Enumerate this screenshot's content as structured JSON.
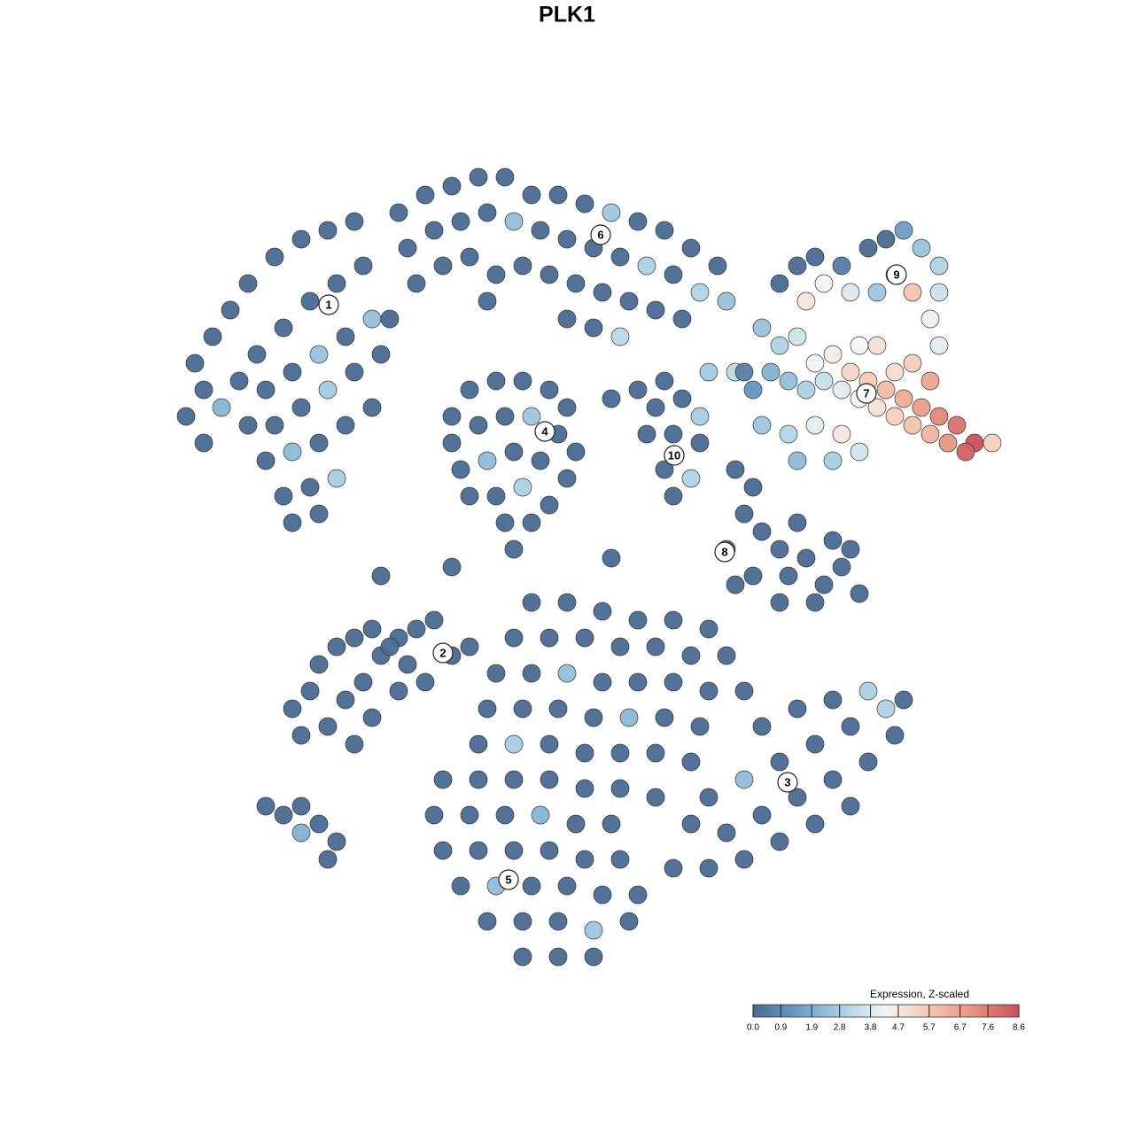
{
  "chart_data": {
    "type": "scatter",
    "title": "PLK1",
    "xlim": [
      0,
      128
    ],
    "ylim": [
      0,
      128
    ],
    "x": [
      22,
      24,
      26,
      28,
      31,
      34,
      37,
      40,
      23,
      25,
      27,
      29,
      32,
      35,
      38,
      41,
      30,
      33,
      36,
      39,
      42,
      28,
      31,
      34,
      37,
      40,
      43,
      30,
      33,
      36,
      39,
      42,
      32,
      35,
      38,
      33,
      36,
      23,
      21,
      45,
      48,
      51,
      54,
      57,
      60,
      63,
      66,
      69,
      72,
      75,
      78,
      81,
      46,
      49,
      52,
      55,
      58,
      61,
      64,
      67,
      70,
      73,
      76,
      79,
      47,
      50,
      53,
      56,
      59,
      62,
      65,
      68,
      71,
      74,
      77,
      82,
      64,
      67,
      70,
      55,
      44,
      51,
      53,
      56,
      59,
      62,
      64,
      51,
      54,
      57,
      60,
      63,
      65,
      52,
      55,
      58,
      61,
      64,
      53,
      56,
      59,
      62,
      57,
      60,
      74,
      77,
      79,
      73,
      76,
      79,
      75,
      78,
      76,
      69,
      72,
      75,
      80,
      83,
      83,
      85,
      84,
      86,
      88,
      89,
      91,
      93,
      95,
      97,
      92,
      88,
      94,
      90,
      82,
      85,
      96,
      83,
      88,
      90,
      92,
      95,
      98,
      100,
      102,
      104,
      106,
      106,
      105,
      101,
      99,
      96,
      93,
      91,
      103,
      106,
      86,
      88,
      90,
      92,
      94,
      96,
      98,
      100,
      102,
      104,
      106,
      108,
      110,
      112,
      109,
      107,
      105,
      103,
      101,
      99,
      97,
      95,
      93,
      91,
      89,
      87,
      85,
      86,
      89,
      92,
      95,
      97,
      94,
      90,
      101,
      103,
      105,
      97,
      99,
      84,
      33,
      35,
      37,
      39,
      41,
      43,
      45,
      47,
      49,
      36,
      38,
      40,
      42,
      44,
      46,
      48,
      51,
      53,
      40,
      42,
      34,
      45,
      30,
      32,
      34,
      36,
      38,
      37,
      34,
      60,
      64,
      68,
      72,
      76,
      80,
      58,
      62,
      66,
      70,
      74,
      78,
      82,
      56,
      60,
      64,
      68,
      72,
      76,
      80,
      84,
      55,
      59,
      63,
      67,
      71,
      75,
      79,
      54,
      58,
      62,
      66,
      70,
      74,
      78,
      50,
      54,
      58,
      62,
      66,
      70,
      74,
      49,
      53,
      57,
      61,
      65,
      69,
      50,
      54,
      58,
      62,
      66,
      70,
      52,
      56,
      60,
      64,
      68,
      72,
      55,
      59,
      63,
      67,
      71,
      59,
      63,
      67,
      80,
      84,
      88,
      92,
      96,
      100,
      102,
      82,
      86,
      90,
      94,
      98,
      101,
      84,
      88,
      92,
      96,
      86,
      90,
      94,
      98,
      78,
      76,
      80,
      43,
      51,
      58,
      69
    ],
    "y": [
      87,
      90,
      93,
      96,
      99,
      101,
      102,
      103,
      84,
      82,
      85,
      88,
      91,
      94,
      96,
      98,
      84,
      86,
      88,
      90,
      92,
      80,
      80,
      82,
      84,
      86,
      88,
      76,
      77,
      78,
      80,
      82,
      72,
      73,
      74,
      69,
      70,
      78,
      81,
      104,
      106,
      107,
      108,
      108,
      106,
      106,
      105,
      104,
      103,
      102,
      100,
      98,
      100,
      102,
      103,
      104,
      103,
      102,
      101,
      100,
      99,
      98,
      97,
      95,
      96,
      98,
      99,
      97,
      98,
      97,
      96,
      95,
      94,
      93,
      92,
      94,
      92,
      91,
      90,
      94,
      92,
      81,
      84,
      85,
      85,
      84,
      82,
      78,
      80,
      81,
      81,
      79,
      77,
      75,
      76,
      77,
      76,
      74,
      72,
      72,
      73,
      71,
      69,
      69,
      82,
      83,
      81,
      79,
      79,
      78,
      75,
      74,
      72,
      83,
      84,
      85,
      86,
      86,
      75,
      73,
      70,
      68,
      66,
      63,
      65,
      62,
      64,
      61,
      60,
      60,
      67,
      69,
      66,
      63,
      66,
      62,
      96,
      98,
      99,
      98,
      100,
      101,
      102,
      100,
      98,
      95,
      92,
      97,
      95,
      95,
      96,
      94,
      95,
      89,
      91,
      89,
      90,
      87,
      88,
      86,
      85,
      84,
      83,
      82,
      81,
      80,
      78,
      78,
      77,
      78,
      79,
      80,
      81,
      82,
      83,
      84,
      85,
      84,
      85,
      86,
      84,
      80,
      79,
      80,
      79,
      77,
      76,
      76,
      86,
      87,
      85,
      89,
      89,
      86,
      48,
      50,
      46,
      49,
      51,
      54,
      56,
      57,
      58,
      53,
      55,
      56,
      57,
      55,
      53,
      51,
      54,
      55,
      44,
      47,
      45,
      50,
      37,
      36,
      34,
      35,
      33,
      31,
      37,
      60,
      60,
      59,
      58,
      58,
      57,
      56,
      56,
      56,
      55,
      55,
      54,
      54,
      52,
      52,
      52,
      51,
      51,
      51,
      50,
      50,
      48,
      48,
      48,
      47,
      47,
      47,
      46,
      44,
      44,
      44,
      43,
      43,
      43,
      42,
      40,
      40,
      40,
      40,
      39,
      39,
      38,
      36,
      36,
      36,
      36,
      35,
      35,
      32,
      32,
      32,
      32,
      31,
      31,
      28,
      28,
      28,
      28,
      27,
      27,
      24,
      24,
      24,
      23,
      24,
      20,
      20,
      20,
      38,
      40,
      42,
      44,
      46,
      48,
      49,
      34,
      36,
      38,
      40,
      42,
      45,
      31,
      33,
      35,
      37,
      46,
      48,
      49,
      50,
      35,
      30,
      30,
      63,
      64,
      66,
      65
    ],
    "values": [
      0,
      0,
      0,
      0,
      0,
      0,
      0,
      0,
      0,
      2.1,
      0,
      0,
      0,
      0,
      0,
      0,
      0,
      0,
      2.5,
      0,
      2.4,
      0,
      0,
      0,
      2.7,
      0,
      0,
      0,
      2.3,
      0,
      0,
      0,
      0,
      0,
      2.8,
      0,
      0,
      0,
      0,
      0,
      0,
      0,
      0,
      0,
      0,
      0,
      0,
      2.6,
      0,
      0,
      0,
      0,
      0,
      0,
      0,
      0,
      2.4,
      0,
      0,
      0,
      0,
      2.9,
      0,
      3.0,
      0,
      0,
      0,
      0,
      0,
      0,
      0,
      0,
      0,
      0,
      0,
      2.5,
      0,
      0,
      3.2,
      0,
      0,
      0,
      0,
      0,
      0,
      0,
      0,
      0,
      0,
      0,
      2.6,
      0,
      0,
      0,
      2.3,
      0,
      0,
      0,
      0,
      0,
      2.9,
      0,
      0,
      0,
      0,
      0,
      2.8,
      0,
      0,
      0,
      0,
      3.0,
      0,
      0,
      0,
      0,
      2.7,
      3.2,
      0,
      0,
      0,
      0,
      0,
      0,
      0,
      0,
      0,
      0,
      0,
      0,
      0,
      0,
      0,
      0,
      0,
      0,
      0,
      0,
      0,
      0.5,
      0,
      0,
      1.5,
      2.5,
      3,
      3.5,
      4.5,
      3.2,
      2.6,
      3.8,
      4.2,
      4.8,
      5.8,
      3.9,
      2.5,
      3.0,
      3.6,
      4.2,
      4.6,
      5.2,
      5.6,
      6.0,
      6.4,
      6.8,
      7.4,
      7.8,
      8.6,
      5.4,
      8.2,
      7.0,
      6.2,
      5.8,
      5.4,
      4.9,
      4.4,
      3.9,
      3.4,
      2.9,
      2.4,
      2.0,
      1.2,
      2.6,
      3.1,
      4.0,
      4.8,
      3.6,
      2.8,
      2.3,
      5.1,
      5.5,
      6.6,
      4.3,
      5.0,
      0.6,
      0,
      0,
      0,
      0,
      0,
      0,
      0,
      0,
      0,
      0,
      0,
      0,
      0,
      0,
      0,
      0,
      0,
      0,
      0,
      0,
      0,
      0,
      0,
      0,
      2.0,
      0,
      0,
      0,
      0,
      0,
      0,
      0,
      0,
      0,
      0,
      0,
      0,
      0,
      0,
      0,
      0,
      0,
      0,
      0,
      2.4,
      0,
      0,
      0,
      0,
      0,
      0,
      0,
      0,
      0,
      2.2,
      0,
      0,
      0,
      2.8,
      0,
      0,
      0,
      0,
      0,
      0,
      0,
      0,
      0,
      0,
      0,
      0,
      0,
      0,
      0,
      2.1,
      0,
      0,
      0,
      0,
      0,
      0,
      0,
      0,
      0,
      2.3,
      0,
      0,
      0,
      0,
      0,
      0,
      0,
      2.6,
      0,
      0,
      0,
      0,
      0,
      2.3,
      0,
      0,
      0,
      3.0,
      0,
      0,
      0,
      0,
      0,
      0,
      0,
      0,
      0,
      0,
      0,
      0,
      0,
      0,
      2.9,
      0,
      0,
      0,
      0,
      0,
      0,
      0
    ],
    "cluster_labels": {
      "labels": [
        "1",
        "2",
        "3",
        "4",
        "5",
        "6",
        "7",
        "8",
        "9",
        "10"
      ],
      "x": [
        37.1,
        50.0,
        88.9,
        61.5,
        57.4,
        67.8,
        97.8,
        81.8,
        101.2,
        76.1
      ],
      "y": [
        93.6,
        54.3,
        39.7,
        79.3,
        28.7,
        101.5,
        83.6,
        65.7,
        97.0,
        76.6
      ]
    },
    "colorbar": {
      "title": "Expression, Z-scaled",
      "lim": [
        0,
        8.6
      ],
      "ticks": [
        {
          "value": 0,
          "label": "0.0"
        },
        0.9,
        1.9,
        2.8,
        3.8,
        4.7,
        5.7,
        6.7,
        7.6,
        8.6
      ],
      "colormap": [
        "#4a6a91",
        "#6a9bc7",
        "#a9d0e3",
        "#f5f5f5",
        "#f6c6ad",
        "#e6907e",
        "#c9505c"
      ]
    }
  }
}
